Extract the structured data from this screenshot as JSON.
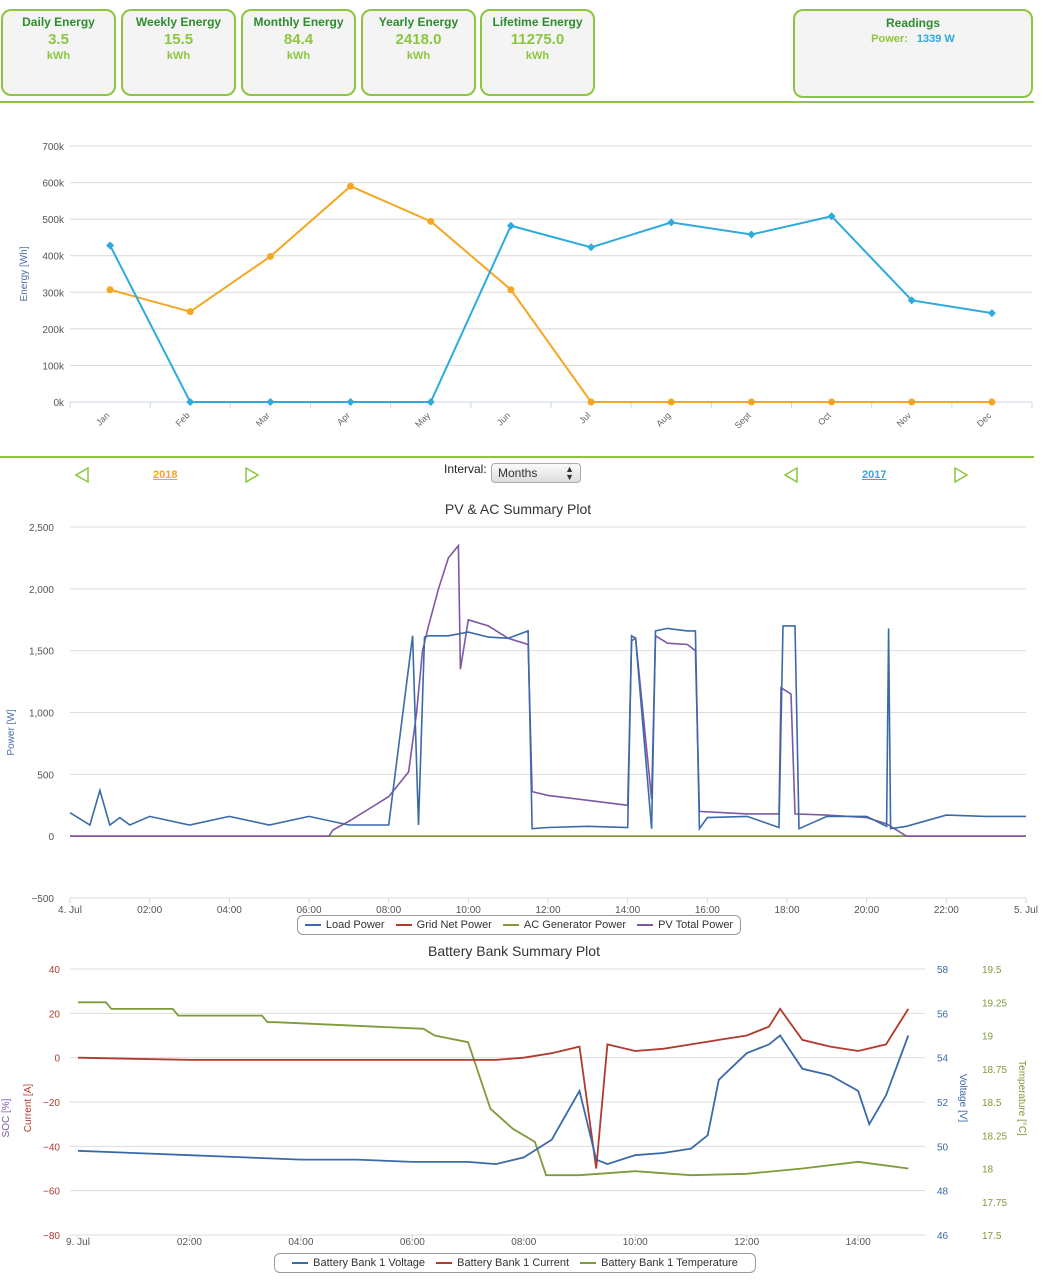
{
  "tiles": [
    {
      "title": "Daily Energy",
      "value": "3.5",
      "unit": "kWh"
    },
    {
      "title": "Weekly Energy",
      "value": "15.5",
      "unit": "kWh"
    },
    {
      "title": "Monthly Energy",
      "value": "84.4",
      "unit": "kWh"
    },
    {
      "title": "Yearly Energy",
      "value": "2418.0",
      "unit": "kWh"
    },
    {
      "title": "Lifetime Energy",
      "value": "11275.0",
      "unit": "kWh"
    }
  ],
  "readings": {
    "title": "Readings",
    "power_label": "Power:",
    "power_value": "1339 W"
  },
  "controls": {
    "interval_label": "Interval:",
    "interval_value": "Months",
    "left_year": "2018",
    "right_year": "2017",
    "prev_icon": "left-triangle-icon",
    "next_icon": "right-triangle-icon"
  },
  "colors": {
    "green": "#8cc63f",
    "orange": "#f5a623",
    "blue": "#2eaadc",
    "darkblue": "#3a6aa8",
    "red": "#b03a2e",
    "olive": "#7f9a3a",
    "purple": "#7e57a6"
  },
  "chart_data": [
    {
      "type": "line",
      "title": "",
      "ylabel": "Energy [Wh]",
      "categories": [
        "Jan",
        "Feb",
        "Mar",
        "Apr",
        "May",
        "Jun",
        "Jul",
        "Aug",
        "Sept",
        "Oct",
        "Nov",
        "Dec"
      ],
      "ylim": [
        0,
        700000
      ],
      "yticks": [
        "0k",
        "100k",
        "200k",
        "300k",
        "400k",
        "500k",
        "600k",
        "700k"
      ],
      "series": [
        {
          "name": "2018",
          "values": [
            307000,
            247000,
            398000,
            590000,
            494000,
            307000,
            0,
            0,
            0,
            0,
            0,
            0
          ]
        },
        {
          "name": "2017",
          "values": [
            428000,
            0,
            0,
            0,
            0,
            482000,
            423000,
            491000,
            458000,
            508000,
            278000,
            243000
          ]
        }
      ]
    },
    {
      "type": "line",
      "title": "PV & AC Summary Plot",
      "ylabel": "Power [W]",
      "ylim": [
        -500,
        2500
      ],
      "yticks": [
        "−500",
        "0",
        "500",
        "1,000",
        "1,500",
        "2,000",
        "2,500"
      ],
      "xticks": [
        "4. Jul",
        "02:00",
        "04:00",
        "06:00",
        "08:00",
        "10:00",
        "12:00",
        "14:00",
        "16:00",
        "18:00",
        "20:00",
        "22:00",
        "5. Jul"
      ],
      "series": [
        {
          "name": "Load Power",
          "x": [
            0,
            0.5,
            0.75,
            1.0,
            1.25,
            1.5,
            2.0,
            3.0,
            4.0,
            5.0,
            6.0,
            7.0,
            8.0,
            8.6,
            8.75,
            8.9,
            9.0,
            9.5,
            10.0,
            10.5,
            11.0,
            11.5,
            11.6,
            12.0,
            13.0,
            14.0,
            14.1,
            14.2,
            14.6,
            14.7,
            15.0,
            15.5,
            15.7,
            15.8,
            16.0,
            17.0,
            17.8,
            17.9,
            18.2,
            18.3,
            19.0,
            20.0,
            20.5,
            20.55,
            20.6,
            21.0,
            22.0,
            23.0,
            24.0
          ],
          "values": [
            190,
            90,
            370,
            90,
            150,
            90,
            160,
            90,
            160,
            90,
            160,
            90,
            90,
            1620,
            90,
            1610,
            1620,
            1620,
            1650,
            1610,
            1600,
            1660,
            60,
            70,
            80,
            70,
            1620,
            1600,
            60,
            1660,
            1680,
            1660,
            1660,
            60,
            150,
            160,
            70,
            1700,
            1700,
            60,
            160,
            160,
            80,
            1680,
            60,
            80,
            170,
            160,
            160
          ]
        },
        {
          "name": "Grid Net Power",
          "x": [
            0,
            24
          ],
          "values": [
            0,
            0
          ]
        },
        {
          "name": "AC Generator Power",
          "x": [
            0,
            24
          ],
          "values": [
            0,
            0
          ]
        },
        {
          "name": "PV Total Power",
          "x": [
            0,
            6.5,
            6.6,
            7.0,
            7.5,
            8.0,
            8.5,
            8.7,
            8.85,
            9.0,
            9.25,
            9.5,
            9.75,
            9.8,
            10.0,
            10.5,
            11.0,
            11.5,
            11.6,
            12.0,
            13.0,
            14.0,
            14.1,
            14.2,
            14.6,
            14.7,
            15.0,
            15.5,
            15.7,
            15.8,
            17.0,
            17.8,
            17.85,
            18.1,
            18.2,
            19.0,
            20.0,
            20.5,
            21.0,
            22.0,
            24.0
          ],
          "values": [
            0,
            0,
            50,
            120,
            220,
            320,
            520,
            1000,
            1500,
            1700,
            2000,
            2250,
            2350,
            1350,
            1750,
            1700,
            1600,
            1550,
            360,
            330,
            290,
            250,
            1580,
            1600,
            300,
            1620,
            1560,
            1550,
            1500,
            200,
            180,
            180,
            1200,
            1150,
            180,
            170,
            150,
            100,
            0,
            0,
            0
          ]
        }
      ]
    },
    {
      "type": "line",
      "title": "Battery Bank Summary Plot",
      "ylabel_left": "SOC [%]",
      "ylabel_left2": "Current [A]",
      "ylabel_right": "Voltage [V]",
      "ylabel_right2": "Temperature [°C]",
      "ylim_left": [
        -80,
        40
      ],
      "ylim_right": [
        46,
        58
      ],
      "ylim_right2": [
        17.5,
        19.5
      ],
      "yticks_left": [
        "−80",
        "−60",
        "−40",
        "−20",
        "0",
        "20",
        "40"
      ],
      "yticks_right": [
        "46",
        "48",
        "50",
        "52",
        "54",
        "56",
        "58"
      ],
      "yticks_right2": [
        "17.5",
        "17.75",
        "18",
        "18.25",
        "18.5",
        "18.75",
        "19",
        "19.25",
        "19.5"
      ],
      "xticks": [
        "9. Jul",
        "02:00",
        "04:00",
        "06:00",
        "08:00",
        "10:00",
        "12:00",
        "14:00"
      ],
      "series": [
        {
          "name": "Battery Bank 1 Voltage",
          "x": [
            0,
            1,
            2,
            3,
            4,
            5,
            6,
            7,
            7.5,
            8,
            8.5,
            9,
            9.3,
            9.5,
            10,
            10.5,
            11,
            11.3,
            11.5,
            12,
            12.4,
            12.6,
            13,
            13.5,
            14,
            14.2,
            14.5,
            14.9
          ],
          "values": [
            49.8,
            49.7,
            49.6,
            49.5,
            49.4,
            49.4,
            49.3,
            49.3,
            49.2,
            49.5,
            50.3,
            52.5,
            49.4,
            49.2,
            49.6,
            49.7,
            49.9,
            50.5,
            53,
            54.2,
            54.6,
            55,
            53.5,
            53.2,
            52.5,
            51,
            52.3,
            55
          ]
        },
        {
          "name": "Battery Bank 1 Current",
          "x": [
            0,
            2,
            4,
            6,
            7,
            7.5,
            8,
            8.5,
            9,
            9.3,
            9.5,
            10,
            10.5,
            11,
            11.5,
            12,
            12.4,
            12.6,
            13,
            13.5,
            14,
            14.5,
            14.9
          ],
          "values": [
            0,
            -1,
            -1,
            -1,
            -1,
            -1,
            0,
            2,
            5,
            -50,
            6,
            3,
            4,
            6,
            8,
            10,
            14,
            22,
            8,
            5,
            3,
            6,
            22
          ]
        },
        {
          "name": "Battery Bank 1 Temperature",
          "x": [
            0,
            0.5,
            0.6,
            1.7,
            1.8,
            3.3,
            3.4,
            3.55,
            6.2,
            6.4,
            7.0,
            7.2,
            7.4,
            7.8,
            8.2,
            8.4,
            9,
            10,
            11,
            12,
            13,
            14,
            14.9
          ],
          "values": [
            19.25,
            19.25,
            19.2,
            19.2,
            19.15,
            19.15,
            19.1,
            19.1,
            19.05,
            19.0,
            18.95,
            18.7,
            18.45,
            18.3,
            18.2,
            17.95,
            17.95,
            17.98,
            17.95,
            17.96,
            18.0,
            18.05,
            18.0
          ]
        }
      ]
    }
  ]
}
